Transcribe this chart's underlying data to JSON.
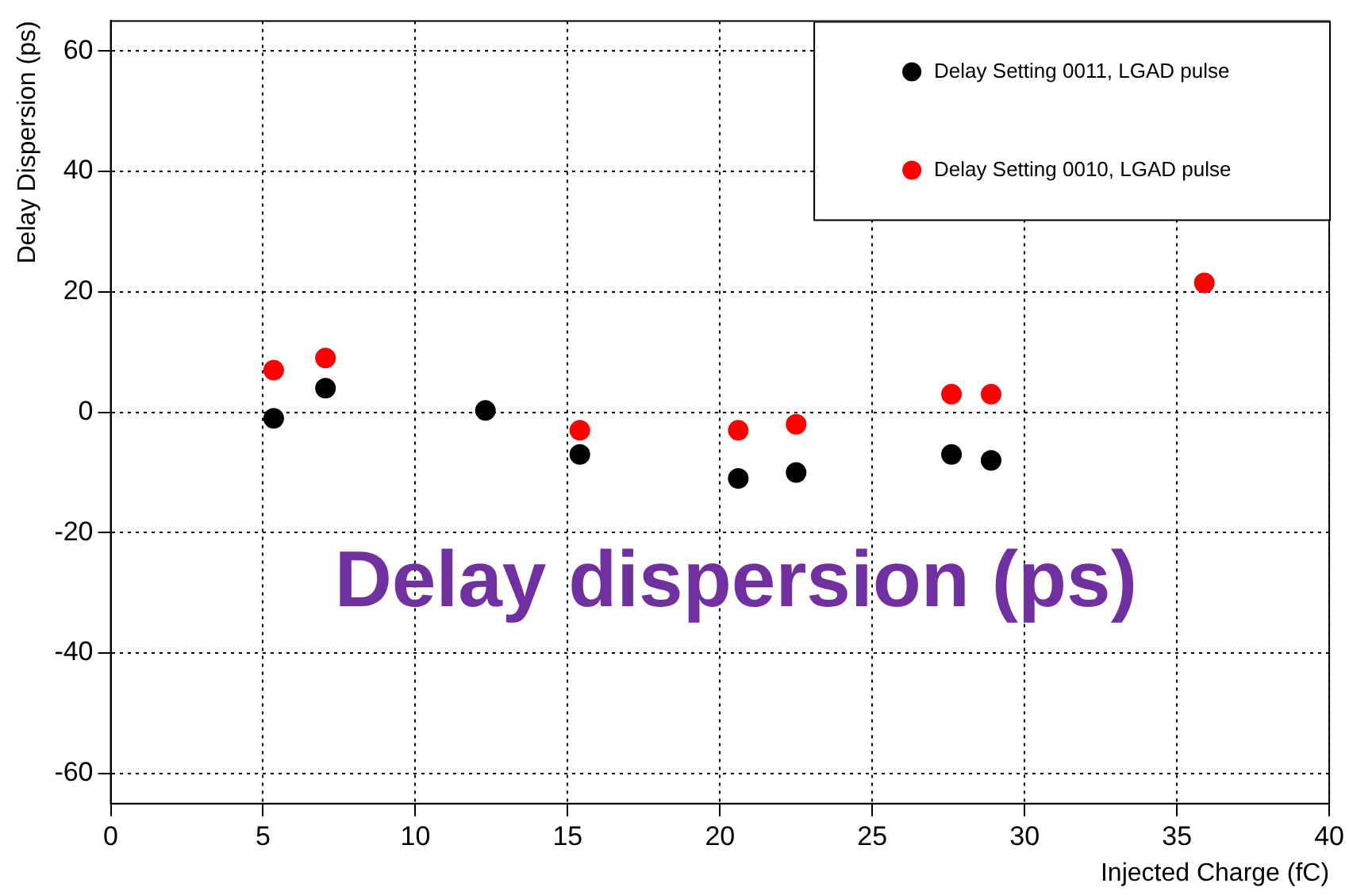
{
  "chart_data": {
    "type": "scatter",
    "xlabel": "Injected Charge (fC)",
    "ylabel": "Delay Dispersion (ps)",
    "series": [
      {
        "name": "Delay Setting 0011, LGAD pulse",
        "color": "#000000",
        "x": [
          5.35,
          7.05,
          12.3,
          15.4,
          20.6,
          22.5,
          27.6,
          28.9
        ],
        "values": [
          -1,
          4,
          0.3,
          -7,
          -11,
          -10,
          -7,
          -8
        ]
      },
      {
        "name": "Delay Setting 0010, LGAD pulse",
        "color": "#ff0000",
        "x": [
          5.35,
          7.05,
          15.4,
          20.6,
          22.5,
          27.6,
          28.9,
          35.9
        ],
        "values": [
          7,
          9,
          -3,
          -3,
          -2,
          3,
          3,
          21.5
        ]
      }
    ],
    "xlim": [
      0,
      40
    ],
    "xticks": [
      0,
      5,
      10,
      15,
      20,
      25,
      30,
      35,
      40
    ],
    "ylim": [
      -65,
      65
    ],
    "yticks": [
      -60,
      -40,
      -20,
      0,
      20,
      40,
      60
    ],
    "grid": true,
    "legend": "top right",
    "marker": "circle",
    "annotations": [
      "Delay dispersion (ps)"
    ]
  }
}
